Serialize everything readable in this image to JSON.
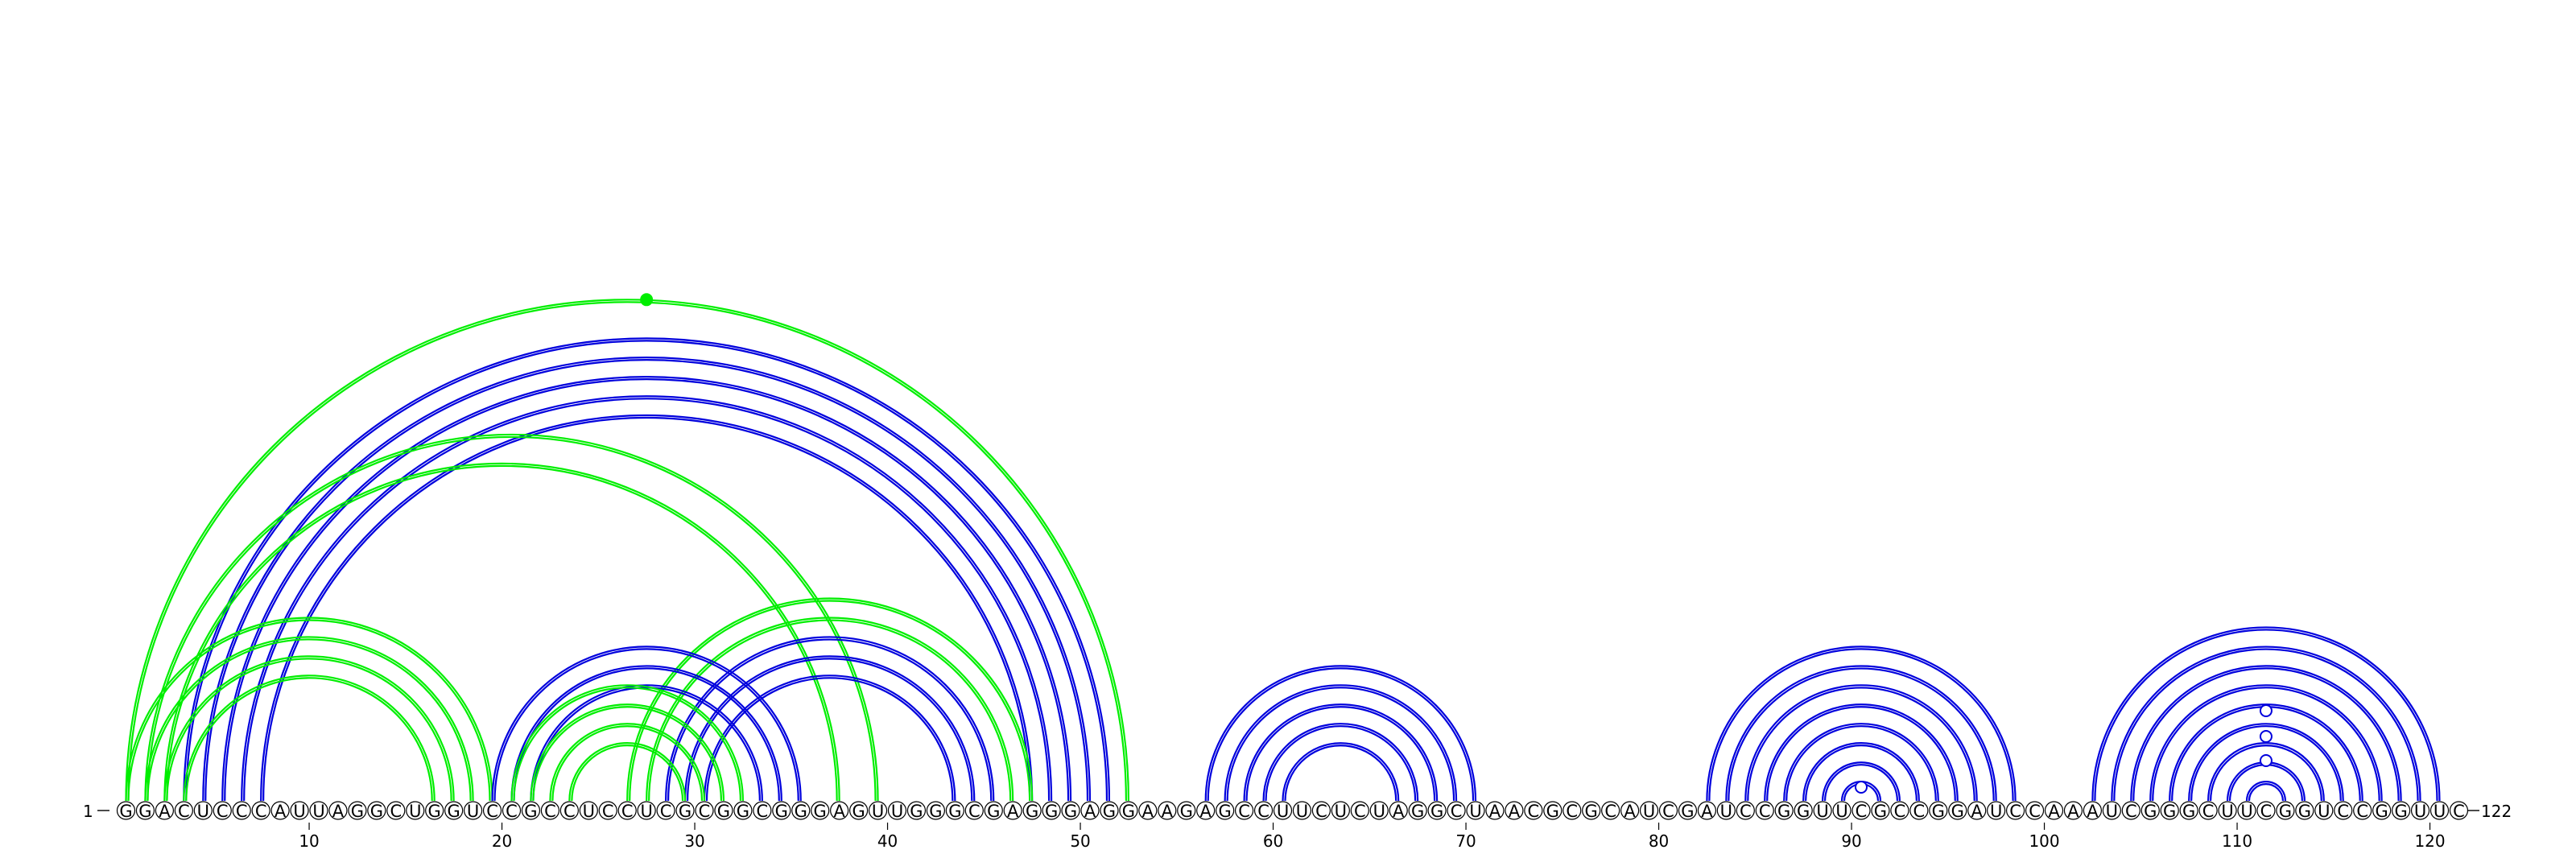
{
  "sequence": "GGACUCCCAUUAGGCUGGUCCGCCUCCUCGCGGCGGGAGUUGGGCGAGGGAGGAAGAGCCUUCUCUAGGCUAACGCGCAUCGAUCCGGUUCGCCGGAUCCAAAUCGGGCUUCGGUCCGGUUC",
  "start_label": "1",
  "end_label": "122",
  "tick_labels": [
    "10",
    "20",
    "30",
    "40",
    "50",
    "60",
    "70",
    "80",
    "90",
    "100",
    "110",
    "120"
  ],
  "colors": {
    "blue": "#0000dd",
    "green": "#00ee00"
  },
  "arcs": [
    {
      "i": 4,
      "j": 52,
      "color": "blue"
    },
    {
      "i": 5,
      "j": 51,
      "color": "blue"
    },
    {
      "i": 6,
      "j": 50,
      "color": "blue"
    },
    {
      "i": 7,
      "j": 49,
      "color": "blue"
    },
    {
      "i": 8,
      "j": 48,
      "color": "blue"
    },
    {
      "i": 1,
      "j": 53,
      "color": "green"
    },
    {
      "i": 2,
      "j": 40,
      "color": "green"
    },
    {
      "i": 3,
      "j": 38,
      "color": "green"
    },
    {
      "i": 1,
      "j": 20,
      "color": "green"
    },
    {
      "i": 2,
      "j": 19,
      "color": "green"
    },
    {
      "i": 3,
      "j": 18,
      "color": "green"
    },
    {
      "i": 4,
      "j": 17,
      "color": "green"
    },
    {
      "i": 27,
      "j": 48,
      "color": "green"
    },
    {
      "i": 28,
      "j": 47,
      "color": "green"
    },
    {
      "i": 29,
      "j": 46,
      "color": "blue"
    },
    {
      "i": 30,
      "j": 45,
      "color": "blue"
    },
    {
      "i": 31,
      "j": 44,
      "color": "blue"
    },
    {
      "i": 20,
      "j": 36,
      "color": "blue"
    },
    {
      "i": 21,
      "j": 35,
      "color": "blue"
    },
    {
      "i": 22,
      "j": 34,
      "color": "blue"
    },
    {
      "i": 21,
      "j": 33,
      "color": "green"
    },
    {
      "i": 22,
      "j": 32,
      "color": "green"
    },
    {
      "i": 23,
      "j": 31,
      "color": "green"
    },
    {
      "i": 24,
      "j": 30,
      "color": "green"
    },
    {
      "i": 57,
      "j": 71,
      "color": "blue"
    },
    {
      "i": 58,
      "j": 70,
      "color": "blue"
    },
    {
      "i": 59,
      "j": 69,
      "color": "blue"
    },
    {
      "i": 60,
      "j": 68,
      "color": "blue"
    },
    {
      "i": 61,
      "j": 67,
      "color": "blue"
    },
    {
      "i": 83,
      "j": 99,
      "color": "blue"
    },
    {
      "i": 84,
      "j": 98,
      "color": "blue"
    },
    {
      "i": 85,
      "j": 97,
      "color": "blue"
    },
    {
      "i": 86,
      "j": 96,
      "color": "blue"
    },
    {
      "i": 87,
      "j": 95,
      "color": "blue"
    },
    {
      "i": 88,
      "j": 94,
      "color": "blue"
    },
    {
      "i": 89,
      "j": 93,
      "color": "blue"
    },
    {
      "i": 90,
      "j": 92,
      "color": "blue"
    },
    {
      "i": 103,
      "j": 121,
      "color": "blue"
    },
    {
      "i": 104,
      "j": 120,
      "color": "blue"
    },
    {
      "i": 105,
      "j": 119,
      "color": "blue"
    },
    {
      "i": 106,
      "j": 118,
      "color": "blue"
    },
    {
      "i": 107,
      "j": 117,
      "color": "blue"
    },
    {
      "i": 108,
      "j": 116,
      "color": "blue"
    },
    {
      "i": 109,
      "j": 115,
      "color": "blue"
    },
    {
      "i": 110,
      "j": 114,
      "color": "blue"
    },
    {
      "i": 111,
      "j": 113,
      "color": "blue"
    }
  ]
}
